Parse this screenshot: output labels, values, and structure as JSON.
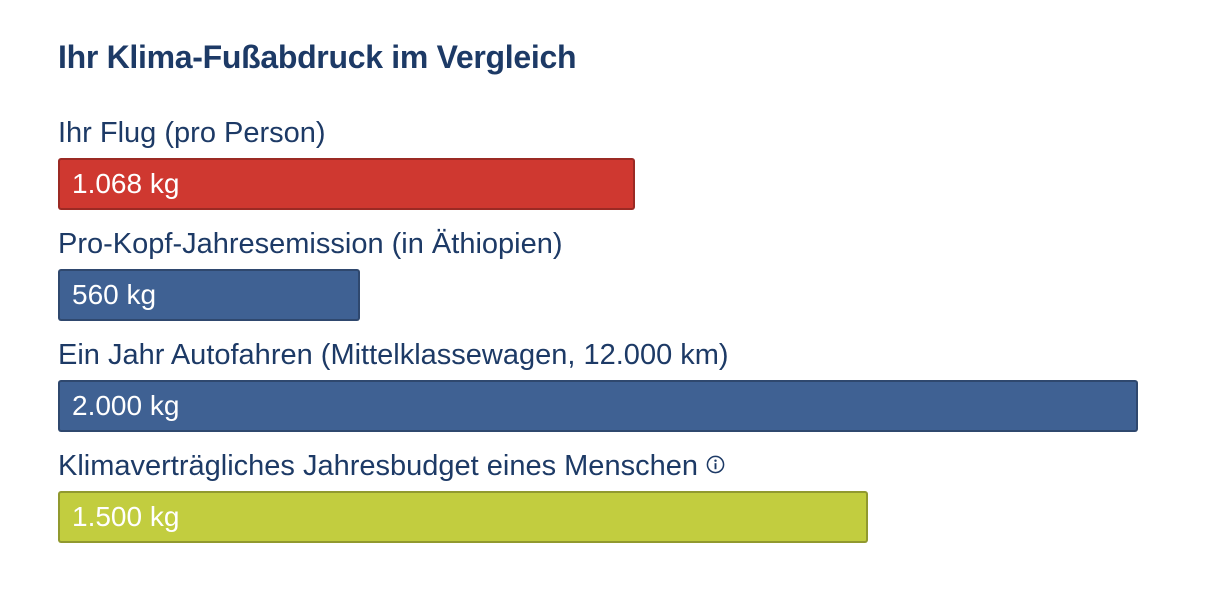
{
  "title": "Ihr Klima-Fußabdruck im Vergleich",
  "chart_data": {
    "type": "bar",
    "orientation": "horizontal",
    "title": "Ihr Klima-Fußabdruck im Vergleich",
    "unit": "kg",
    "grid": false,
    "xlim": [
      0,
      2000
    ],
    "bars": [
      {
        "category": "Ihr Flug (pro Person)",
        "value": 1068,
        "label": "1.068 kg",
        "color": "#cf3830",
        "info": false
      },
      {
        "category": "Pro-Kopf-Jahresemission (in Äthiopien)",
        "value": 560,
        "label": "560 kg",
        "color": "#3f6193",
        "info": false
      },
      {
        "category": "Ein Jahr Autofahren (Mittelklassewagen, 12.000 km)",
        "value": 2000,
        "label": "2.000 kg",
        "color": "#3f6193",
        "info": false
      },
      {
        "category": "Klimaverträgliches Jahresbudget eines Menschen",
        "value": 1500,
        "label": "1.500 kg",
        "color": "#c2cd3f",
        "info": true
      }
    ]
  },
  "icons": {
    "info": "info-circle-icon"
  },
  "colors": {
    "heading": "#1d3a66",
    "flight": "#cf3830",
    "comparison": "#3f6193",
    "budget": "#c2cd3f"
  }
}
